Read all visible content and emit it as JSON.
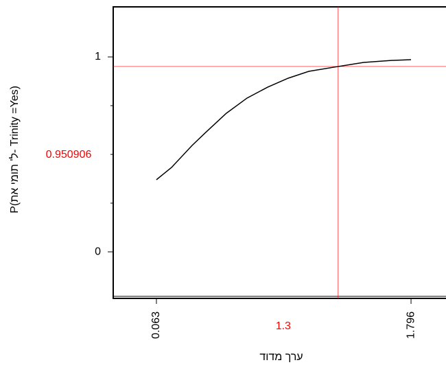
{
  "chart_data": {
    "type": "line",
    "x": [
      0.063,
      0.166,
      0.306,
      0.399,
      0.539,
      0.68,
      0.82,
      0.96,
      1.1,
      1.3,
      1.474,
      1.66,
      1.796
    ],
    "series": [
      {
        "color": "#000000",
        "values": [
          0.37,
          0.433,
          0.546,
          0.613,
          0.711,
          0.789,
          0.845,
          0.891,
          0.926,
          0.951,
          0.972,
          0.982,
          0.986
        ]
      }
    ],
    "xlim": [
      -0.231,
      2.034
    ],
    "ylim": [
      -0.239,
      1.257
    ],
    "xticks": [
      0.063,
      1.796
    ],
    "yticks": [
      0,
      1
    ],
    "yminor": [
      0.25,
      0.5,
      0.75
    ],
    "current_x": 1.3,
    "current_y": 0.950906,
    "crosshair_color": "#ff0000",
    "xlabel": "ערך מדוד",
    "ylabel": "P(ל' תומי את- Trinity =Yes)"
  }
}
